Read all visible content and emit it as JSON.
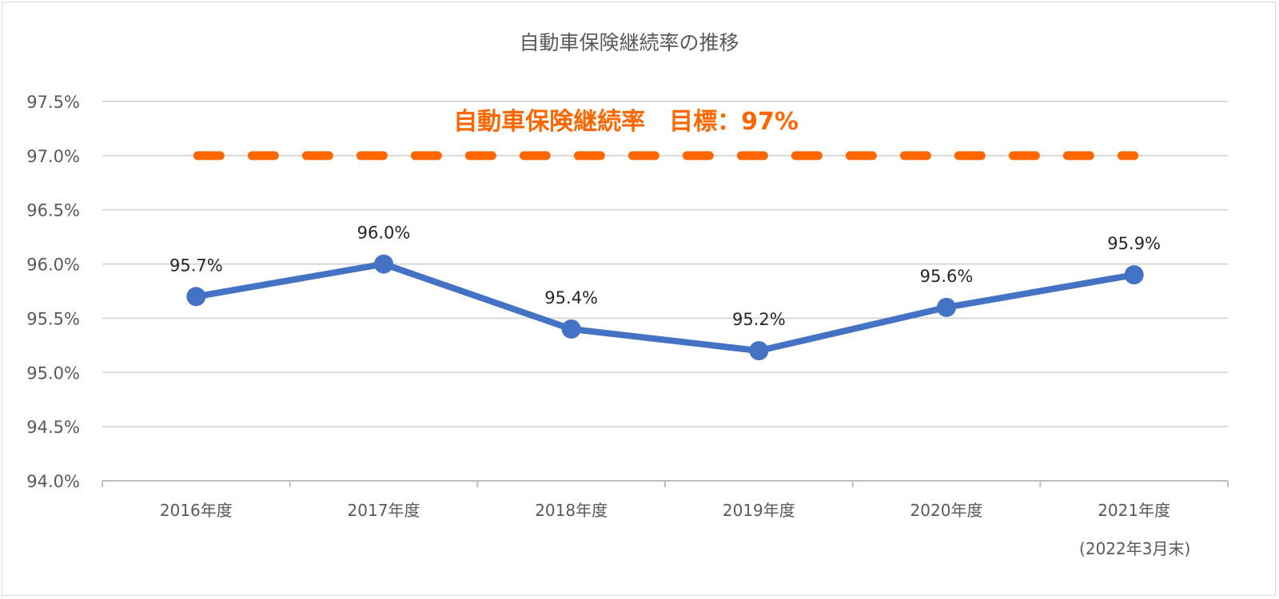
{
  "chart_data": {
    "type": "line",
    "title": "自動車保険継続率の推移",
    "categories": [
      "2016年度",
      "2017年度",
      "2018年度",
      "2019年度",
      "2020年度",
      "2021年度"
    ],
    "category_sublabels": [
      "",
      "",
      "",
      "",
      "",
      "(2022年3月末)"
    ],
    "series": [
      {
        "name": "自動車保険継続率",
        "values": [
          95.7,
          96.0,
          95.4,
          95.2,
          95.6,
          95.9
        ],
        "labels": [
          "95.7%",
          "96.0%",
          "95.4%",
          "95.2%",
          "95.6%",
          "95.9%"
        ],
        "color": "#4472C4"
      }
    ],
    "target": {
      "label": "自動車保険継続率　目標：97%",
      "value": 97.0,
      "color": "#FF6600",
      "style": "dashed"
    },
    "ylim": [
      94.0,
      97.5
    ],
    "yticks": [
      "94.0%",
      "94.5%",
      "95.0%",
      "95.5%",
      "96.0%",
      "96.5%",
      "97.0%",
      "97.5%"
    ],
    "ytick_values": [
      94.0,
      94.5,
      95.0,
      95.5,
      96.0,
      96.5,
      97.0,
      97.5
    ],
    "xlabel": "",
    "ylabel": "",
    "grid": true,
    "legend": "none"
  }
}
